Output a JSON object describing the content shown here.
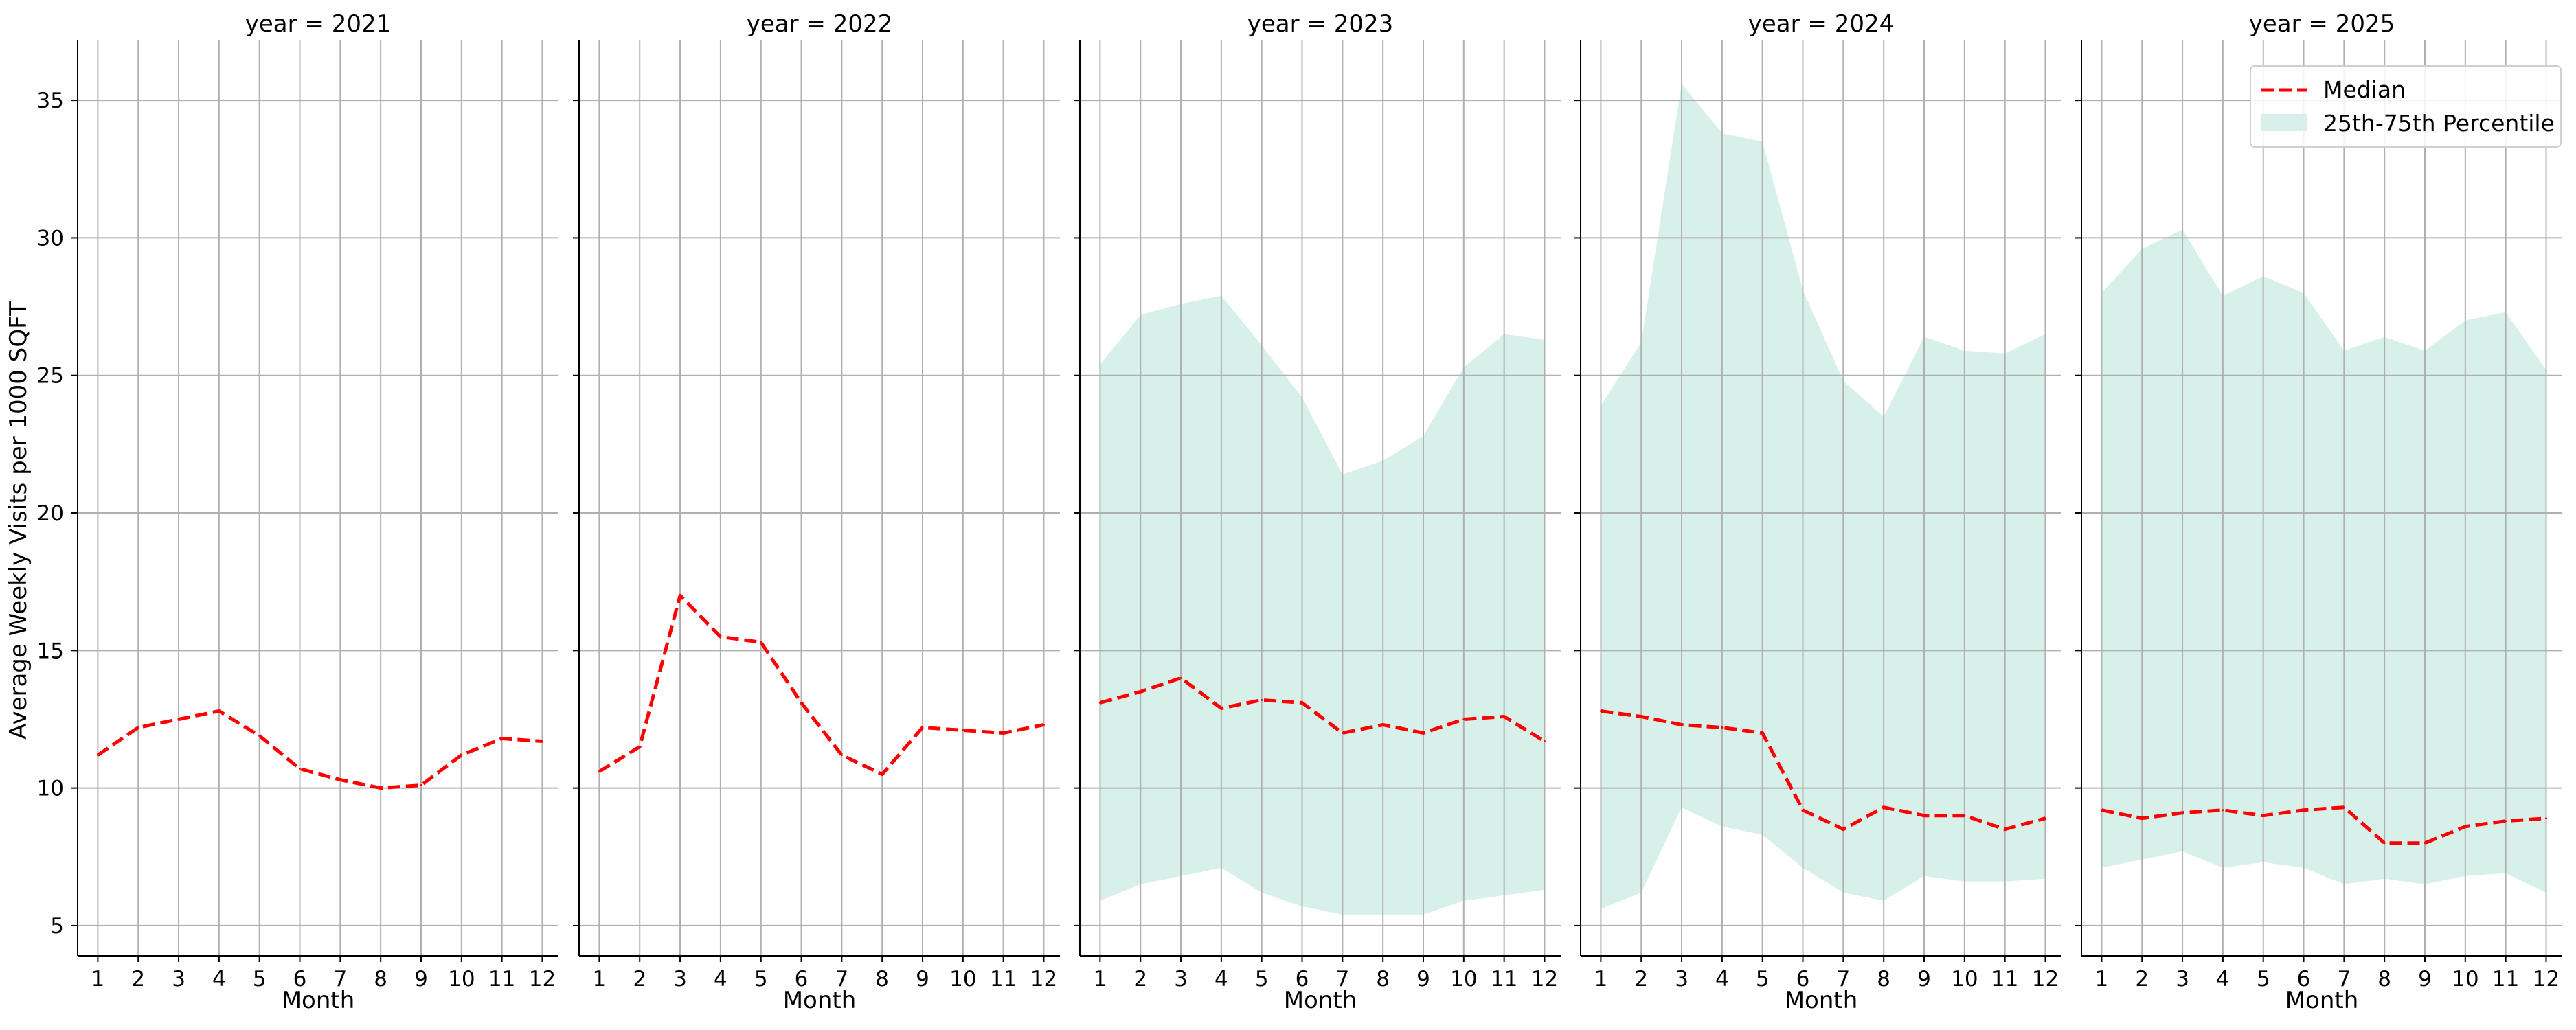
{
  "chart_data": {
    "type": "line",
    "ylabel": "Average Weekly Visits per 1000 SQFT",
    "xlabel": "Month",
    "x_ticks": [
      "1",
      "2",
      "3",
      "4",
      "5",
      "6",
      "7",
      "8",
      "9",
      "10",
      "11",
      "12"
    ],
    "y_ticks": [
      "5",
      "10",
      "15",
      "20",
      "25",
      "30",
      "35"
    ],
    "ylim": [
      3.9,
      37.2
    ],
    "xlim": [
      0.5,
      12.4
    ],
    "grid": true,
    "legend_placement": "top-right of last panel",
    "legend": {
      "median_label": "Median",
      "band_label": "25th-75th Percentile"
    },
    "colors": {
      "median": "#ff0000",
      "band": "#d8f0ea",
      "grid": "#b0b0b0"
    },
    "panels": [
      {
        "title": "year = 2021",
        "x": [
          1,
          2,
          3,
          4,
          5,
          6,
          7,
          8,
          9,
          10,
          11,
          12
        ],
        "median": [
          11.2,
          12.2,
          12.5,
          12.8,
          11.9,
          10.7,
          10.3,
          10.0,
          10.1,
          11.2,
          11.8,
          11.7
        ],
        "p25": null,
        "p75": null
      },
      {
        "title": "year = 2022",
        "x": [
          1,
          2,
          3,
          4,
          5,
          6,
          7,
          8,
          9,
          10,
          11,
          12
        ],
        "median": [
          10.6,
          11.5,
          17.0,
          15.5,
          15.3,
          13.1,
          11.2,
          10.5,
          12.2,
          12.1,
          12.0,
          12.3
        ],
        "p25": null,
        "p75": null
      },
      {
        "title": "year = 2023",
        "x": [
          1,
          2,
          3,
          4,
          5,
          6,
          7,
          8,
          9,
          10,
          11,
          12
        ],
        "median": [
          13.1,
          13.5,
          14.0,
          12.9,
          13.2,
          13.1,
          12.0,
          12.3,
          12.0,
          12.5,
          12.6,
          11.7
        ],
        "p25": [
          5.9,
          6.5,
          6.8,
          7.1,
          6.2,
          5.7,
          5.4,
          5.4,
          5.4,
          5.9,
          6.1,
          6.3
        ],
        "p75": [
          25.4,
          27.2,
          27.6,
          27.9,
          26.1,
          24.2,
          21.4,
          21.9,
          22.8,
          25.3,
          26.5,
          26.3
        ]
      },
      {
        "title": "year = 2024",
        "x": [
          1,
          2,
          3,
          4,
          5,
          6,
          7,
          8,
          9,
          10,
          11,
          12
        ],
        "median": [
          12.8,
          12.6,
          12.3,
          12.2,
          12.0,
          9.2,
          8.5,
          9.3,
          9.0,
          9.0,
          8.5,
          8.9
        ],
        "p25": [
          5.6,
          6.2,
          9.3,
          8.6,
          8.3,
          7.1,
          6.2,
          5.9,
          6.8,
          6.6,
          6.6,
          6.7
        ],
        "p75": [
          23.9,
          26.2,
          35.6,
          33.8,
          33.5,
          28.1,
          24.8,
          23.5,
          26.4,
          25.9,
          25.8,
          26.5
        ]
      },
      {
        "title": "year = 2025",
        "x": [
          1,
          2,
          3,
          4,
          5,
          6,
          7,
          8,
          9,
          10,
          11,
          12
        ],
        "median": [
          9.2,
          8.9,
          9.1,
          9.2,
          9.0,
          9.2,
          9.3,
          8.0,
          8.0,
          8.6,
          8.8,
          8.9
        ],
        "p25": [
          7.1,
          7.4,
          7.7,
          7.1,
          7.3,
          7.1,
          6.5,
          6.7,
          6.5,
          6.8,
          6.9,
          6.2
        ],
        "p75": [
          28.0,
          29.6,
          30.3,
          27.9,
          28.6,
          28.0,
          25.9,
          26.4,
          25.9,
          27.0,
          27.3,
          25.2
        ]
      }
    ]
  }
}
